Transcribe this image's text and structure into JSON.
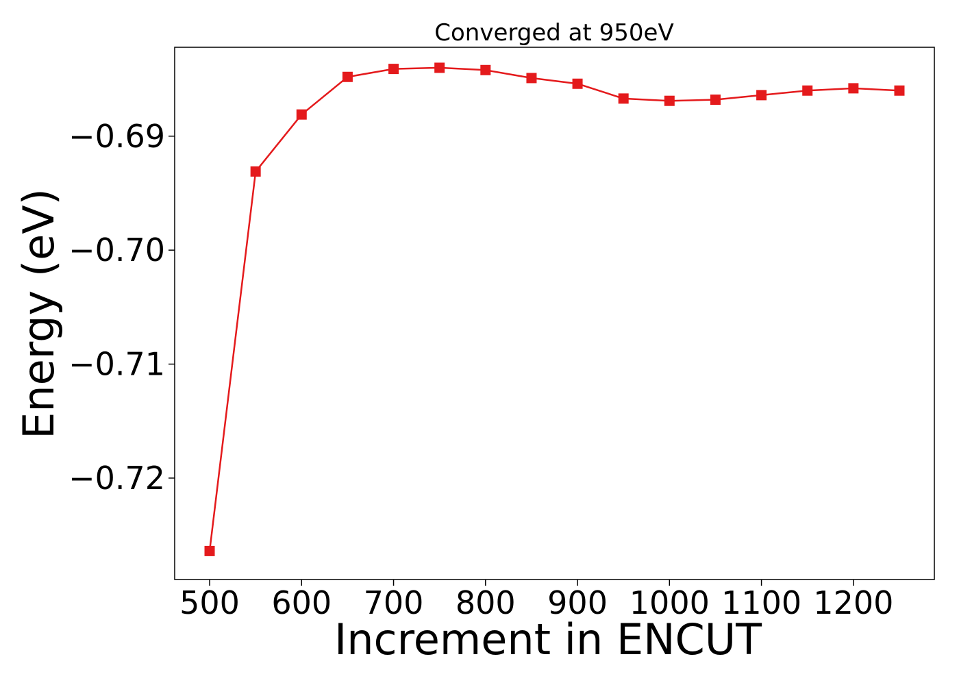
{
  "chart_data": {
    "type": "line",
    "title": "Converged at 950eV",
    "xlabel": "Increment in ENCUT",
    "ylabel": "Energy (eV)",
    "x": [
      500,
      550,
      600,
      650,
      700,
      750,
      800,
      850,
      900,
      950,
      1000,
      1050,
      1100,
      1150,
      1200,
      1250
    ],
    "series": [
      {
        "values": [
          -0.7264,
          -0.6931,
          -0.6881,
          -0.6848,
          -0.6841,
          -0.684,
          -0.6842,
          -0.6849,
          -0.6854,
          -0.6867,
          -0.6869,
          -0.6868,
          -0.6864,
          -0.686,
          -0.6858,
          -0.686
        ],
        "color": "#e41a1c",
        "marker": "square"
      }
    ],
    "xlim": [
      462,
      1288
    ],
    "ylim": [
      -0.7289,
      -0.6822
    ],
    "xticks": [
      500,
      600,
      700,
      800,
      900,
      1000,
      1100,
      1200
    ],
    "xtick_labels": [
      "500",
      "600",
      "700",
      "800",
      "900",
      "1000",
      "1100",
      "1200"
    ],
    "yticks": [
      -0.72,
      -0.71,
      -0.7,
      -0.69
    ],
    "ytick_labels": [
      "−0.72",
      "−0.71",
      "−0.70",
      "−0.69"
    ],
    "grid": false,
    "legend": "none"
  }
}
